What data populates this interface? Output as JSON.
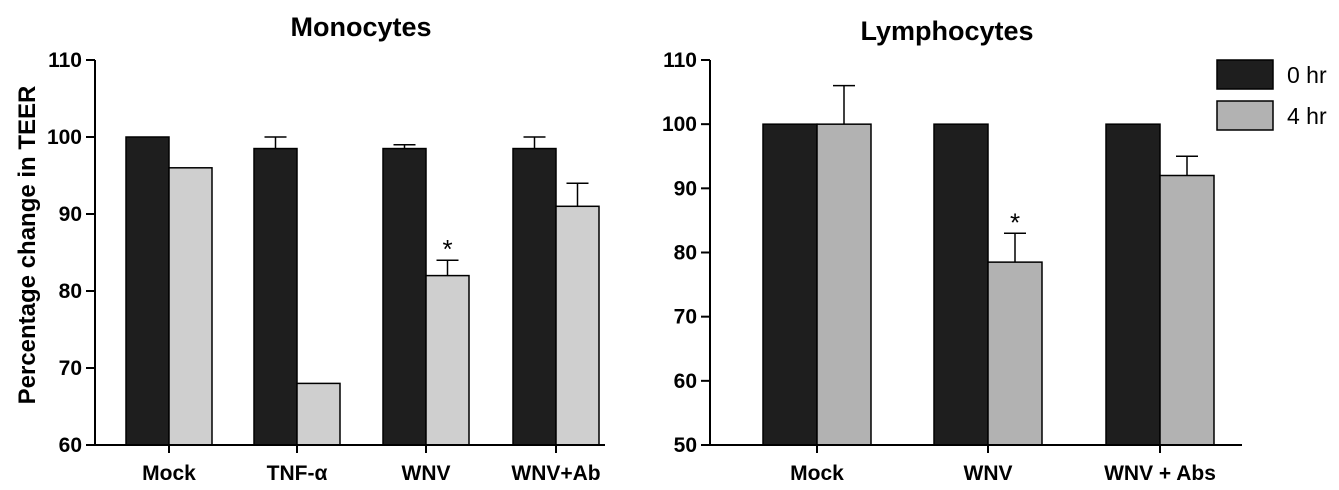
{
  "colors": {
    "series_0hr": "#1e1e1e",
    "series_4hr_left": "#cfcfcf",
    "series_4hr_right": "#b2b2b2",
    "axis": "#000000"
  },
  "chart_data": [
    {
      "type": "bar",
      "title": "Monocytes",
      "ylabel": "Percentage change in TEER",
      "xlabel": "",
      "ylim": [
        60,
        110
      ],
      "yticks": [
        60,
        70,
        80,
        90,
        100,
        110
      ],
      "categories": [
        "Mock",
        "TNF-α",
        "WNV",
        "WNV+Ab"
      ],
      "series": [
        {
          "name": "0 hr",
          "values": [
            100,
            98.5,
            98.5,
            98.5
          ],
          "errors": [
            0,
            1.5,
            0.5,
            1.5
          ]
        },
        {
          "name": "4 hr",
          "values": [
            96,
            68,
            82,
            91
          ],
          "errors": [
            0,
            0,
            2,
            3
          ]
        }
      ],
      "annotations": [
        {
          "category": "WNV",
          "series": "4 hr",
          "text": "*"
        }
      ],
      "grid": false
    },
    {
      "type": "bar",
      "title": "Lymphocytes",
      "ylabel": "",
      "xlabel": "",
      "ylim": [
        50,
        110
      ],
      "yticks": [
        50,
        60,
        70,
        80,
        90,
        100,
        110
      ],
      "categories": [
        "Mock",
        "WNV",
        "WNV + Abs"
      ],
      "series": [
        {
          "name": "0 hr",
          "values": [
            100,
            100,
            100
          ],
          "errors": [
            0,
            0,
            0
          ]
        },
        {
          "name": "4 hr",
          "values": [
            100,
            78.5,
            92
          ],
          "errors": [
            6,
            4.5,
            3
          ]
        }
      ],
      "annotations": [
        {
          "category": "WNV",
          "series": "4 hr",
          "text": "*"
        }
      ],
      "legend": {
        "position": "top-right",
        "entries": [
          "0 hr",
          "4 hr"
        ]
      },
      "grid": false
    }
  ]
}
